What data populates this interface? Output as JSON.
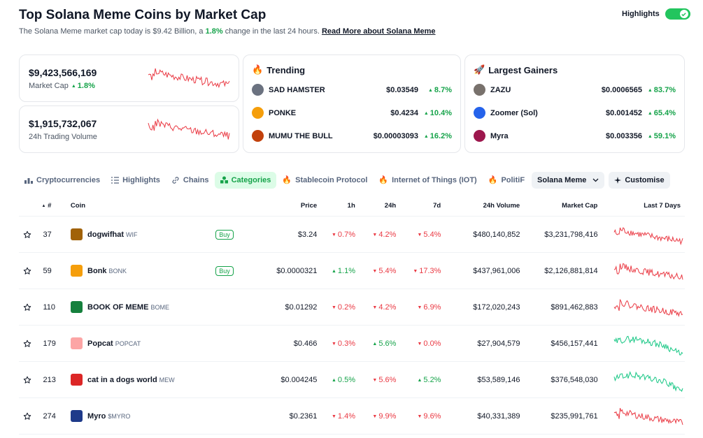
{
  "header": {
    "title": "Top Solana Meme Coins by Market Cap",
    "subtitle_prefix": "The Solana Meme market cap today is $9.42 Billion, a",
    "subtitle_pct": "1.8%",
    "subtitle_suffix": "change in the last 24 hours.",
    "read_more": "Read More about Solana Meme",
    "highlights_label": "Highlights"
  },
  "stats": {
    "market_cap": {
      "value": "$9,423,566,169",
      "label": "Market Cap",
      "change": "1.8%"
    },
    "volume": {
      "value": "$1,915,732,067",
      "label": "24h Trading Volume"
    },
    "spark_color": "#ea3943"
  },
  "trending": {
    "title": "Trending",
    "items": [
      {
        "name": "SAD HAMSTER",
        "price": "$0.03549",
        "change": "8.7%",
        "color": "#6b7280"
      },
      {
        "name": "PONKE",
        "price": "$0.4234",
        "change": "10.4%",
        "color": "#f59e0b"
      },
      {
        "name": "MUMU THE BULL",
        "price": "$0.00003093",
        "change": "16.2%",
        "color": "#c2410c"
      }
    ]
  },
  "gainers": {
    "title": "Largest Gainers",
    "items": [
      {
        "name": "ZAZU",
        "price": "$0.0006565",
        "change": "83.7%",
        "color": "#78716c"
      },
      {
        "name": "Zoomer (Sol)",
        "price": "$0.001452",
        "change": "65.4%",
        "color": "#2563eb"
      },
      {
        "name": "Myra",
        "price": "$0.003356",
        "change": "59.1%",
        "color": "#9d174d"
      }
    ]
  },
  "tabs": [
    "Cryptocurrencies",
    "Highlights",
    "Chains",
    "Categories",
    "Stablecoin Protocol",
    "Internet of Things (IOT)",
    "PolitiF",
    "Solana Meme",
    "Customise"
  ],
  "table": {
    "headers": {
      "rank": "#",
      "coin": "Coin",
      "price": "Price",
      "h1": "1h",
      "h24": "24h",
      "d7": "7d",
      "volume": "24h Volume",
      "mcap": "Market Cap",
      "chart": "Last 7 Days"
    },
    "buy_label": "Buy",
    "rows": [
      {
        "rank": "37",
        "name": "dogwifhat",
        "symbol": "WIF",
        "buy": true,
        "price": "$3.24",
        "h1": "0.7%",
        "h1_dir": "down",
        "h24": "4.2%",
        "h24_dir": "down",
        "d7": "5.4%",
        "d7_dir": "down",
        "volume": "$480,140,852",
        "mcap": "$3,231,798,416",
        "trend": "down",
        "icon_color": "#a16207"
      },
      {
        "rank": "59",
        "name": "Bonk",
        "symbol": "BONK",
        "buy": true,
        "price": "$0.0000321",
        "h1": "1.1%",
        "h1_dir": "up",
        "h24": "5.4%",
        "h24_dir": "down",
        "d7": "17.3%",
        "d7_dir": "down",
        "volume": "$437,961,006",
        "mcap": "$2,126,881,814",
        "trend": "down",
        "icon_color": "#f59e0b"
      },
      {
        "rank": "110",
        "name": "BOOK OF MEME",
        "symbol": "BOME",
        "buy": false,
        "price": "$0.01292",
        "h1": "0.2%",
        "h1_dir": "down",
        "h24": "4.2%",
        "h24_dir": "down",
        "d7": "6.9%",
        "d7_dir": "down",
        "volume": "$172,020,243",
        "mcap": "$891,462,883",
        "trend": "down",
        "icon_color": "#15803d"
      },
      {
        "rank": "179",
        "name": "Popcat",
        "symbol": "POPCAT",
        "buy": false,
        "price": "$0.466",
        "h1": "0.3%",
        "h1_dir": "down",
        "h24": "5.6%",
        "h24_dir": "up",
        "d7": "0.0%",
        "d7_dir": "down",
        "volume": "$27,904,579",
        "mcap": "$456,157,441",
        "trend": "up",
        "icon_color": "#fca5a5"
      },
      {
        "rank": "213",
        "name": "cat in a dogs world",
        "symbol": "MEW",
        "buy": false,
        "price": "$0.004245",
        "h1": "0.5%",
        "h1_dir": "up",
        "h24": "5.6%",
        "h24_dir": "down",
        "d7": "5.2%",
        "d7_dir": "up",
        "volume": "$53,589,146",
        "mcap": "$376,548,030",
        "trend": "up",
        "icon_color": "#dc2626"
      },
      {
        "rank": "274",
        "name": "Myro",
        "symbol": "$MYRO",
        "buy": false,
        "price": "$0.2361",
        "h1": "1.4%",
        "h1_dir": "down",
        "h24": "9.9%",
        "h24_dir": "down",
        "d7": "9.6%",
        "d7_dir": "down",
        "volume": "$40,331,389",
        "mcap": "$235,991,761",
        "trend": "down",
        "icon_color": "#1e3a8a"
      }
    ]
  }
}
